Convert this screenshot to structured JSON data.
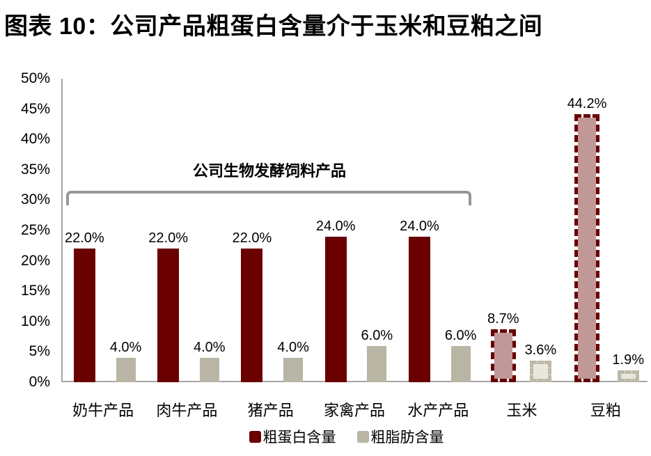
{
  "title": "图表 10：公司产品粗蛋白含量介于玉米和豆粕之间",
  "chart_data": {
    "type": "bar",
    "title": "图表 10：公司产品粗蛋白含量介于玉米和豆粕之间",
    "categories": [
      "奶牛产品",
      "肉牛产品",
      "猪产品",
      "家禽产品",
      "水产产品",
      "玉米",
      "豆粕"
    ],
    "series": [
      {
        "name": "粗蛋白含量",
        "values": [
          22.0,
          22.0,
          22.0,
          24.0,
          24.0,
          8.7,
          44.2
        ],
        "data_labels": [
          "22.0%",
          "22.0%",
          "22.0%",
          "24.0%",
          "24.0%",
          "8.7%",
          "44.2%"
        ],
        "color": "#6a0000",
        "highlight_fill": "#c09898",
        "highlight_border": "#6a0000"
      },
      {
        "name": "粗脂肪含量",
        "values": [
          4.0,
          4.0,
          4.0,
          6.0,
          6.0,
          3.6,
          1.9
        ],
        "data_labels": [
          "4.0%",
          "4.0%",
          "4.0%",
          "6.0%",
          "6.0%",
          "3.6%",
          "1.9%"
        ],
        "color": "#b9b5a5",
        "highlight_fill": "#e9e7dc",
        "highlight_border": "#bdb9a7"
      }
    ],
    "highlighted_categories": [
      "玉米",
      "豆粕"
    ],
    "highlight_style": "dashed-border-light-fill",
    "y_ticks": [
      "50%",
      "45%",
      "40%",
      "35%",
      "30%",
      "25%",
      "20%",
      "15%",
      "10%",
      "5%",
      "0%"
    ],
    "ylim": [
      0,
      50
    ],
    "grid": "off",
    "annotation": {
      "text": "公司生物发酵饲料产品",
      "span_categories": [
        "奶牛产品",
        "肉牛产品",
        "猪产品",
        "家禽产品",
        "水产产品"
      ]
    },
    "legend": [
      "粗蛋白含量",
      "粗脂肪含量"
    ],
    "legend_position": "bottom",
    "axis_color": "#a6a6a6",
    "bracket_color": "#979797"
  }
}
